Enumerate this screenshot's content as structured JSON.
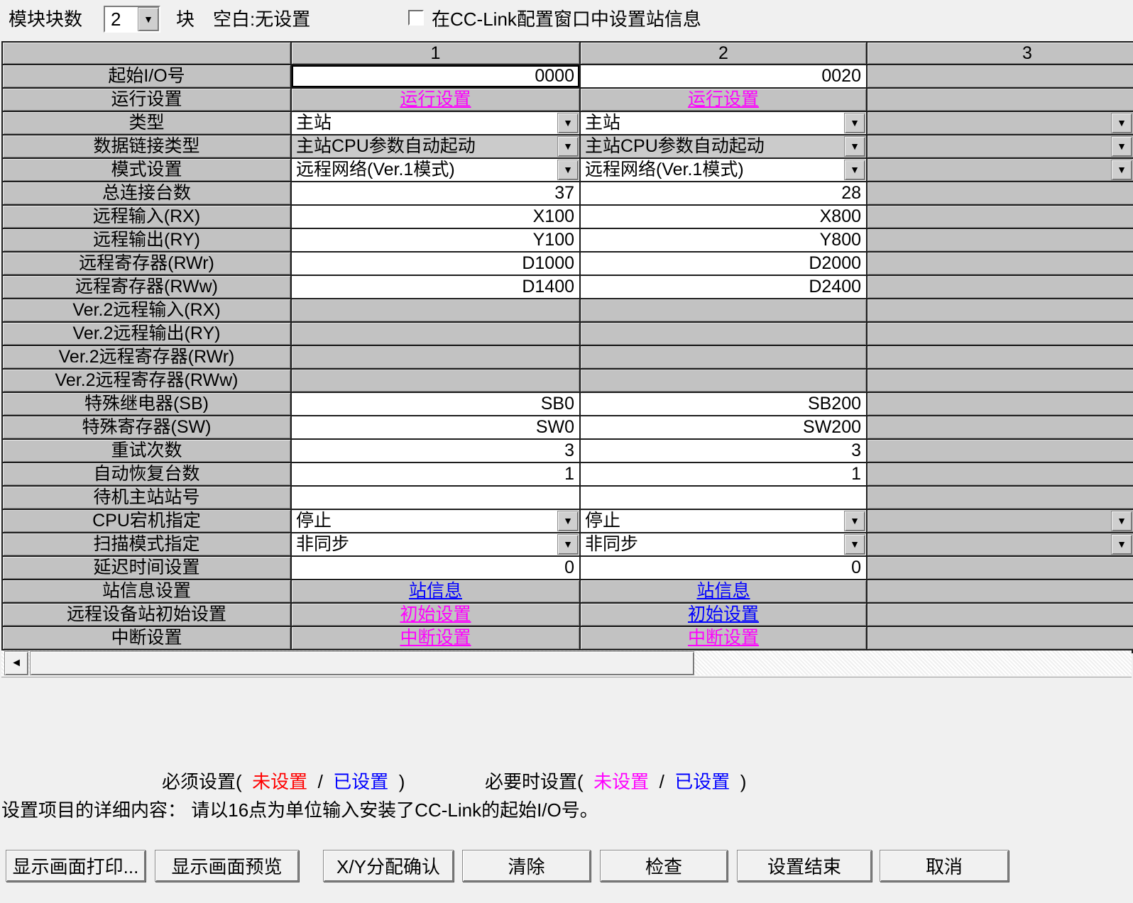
{
  "top": {
    "module_count_label": "模块块数",
    "module_count_value": "2",
    "unit_label": "块",
    "blank_note": "空白:无设置",
    "checkbox_label": "在CC-Link配置窗口中设置站信息",
    "checkbox_checked": false
  },
  "icons": {
    "dropdown_arrow": "▼",
    "scroll_left": "◄"
  },
  "colors": {
    "magenta": "#ff00ff",
    "blue": "#0000ff",
    "red": "#ff0000",
    "silver": "#c2c2c2"
  },
  "table": {
    "column_headers": [
      "1",
      "2",
      "3"
    ],
    "rows": [
      {
        "id": "start-io-no",
        "label": "起始I/O号",
        "cells": [
          {
            "type": "input",
            "value": "0000",
            "selected": true
          },
          {
            "type": "input",
            "value": "0020"
          },
          {
            "type": "gray"
          }
        ]
      },
      {
        "id": "operation-setting",
        "label": "运行设置",
        "cells": [
          {
            "type": "link",
            "value": "运行设置",
            "color": "magenta"
          },
          {
            "type": "link",
            "value": "运行设置",
            "color": "magenta"
          },
          {
            "type": "gray"
          }
        ]
      },
      {
        "id": "type",
        "label": "类型",
        "cells": [
          {
            "type": "combo",
            "value": "主站"
          },
          {
            "type": "combo",
            "value": "主站"
          },
          {
            "type": "combo-edge"
          }
        ]
      },
      {
        "id": "data-link-type",
        "label": "数据链接类型",
        "cells": [
          {
            "type": "combo",
            "value": "主站CPU参数自动起动",
            "field": "silver"
          },
          {
            "type": "combo",
            "value": "主站CPU参数自动起动",
            "field": "silver"
          },
          {
            "type": "combo-edge"
          }
        ]
      },
      {
        "id": "mode-setting",
        "label": "模式设置",
        "cells": [
          {
            "type": "combo",
            "value": "远程网络(Ver.1模式)"
          },
          {
            "type": "combo",
            "value": "远程网络(Ver.1模式)"
          },
          {
            "type": "combo-edge"
          }
        ]
      },
      {
        "id": "total-connected",
        "label": "总连接台数",
        "cells": [
          {
            "type": "input",
            "value": "37"
          },
          {
            "type": "input",
            "value": "28"
          },
          {
            "type": "gray"
          }
        ]
      },
      {
        "id": "remote-input-rx",
        "label": "远程输入(RX)",
        "cells": [
          {
            "type": "input",
            "value": "X100"
          },
          {
            "type": "input",
            "value": "X800"
          },
          {
            "type": "gray"
          }
        ]
      },
      {
        "id": "remote-output-ry",
        "label": "远程输出(RY)",
        "cells": [
          {
            "type": "input",
            "value": "Y100"
          },
          {
            "type": "input",
            "value": "Y800"
          },
          {
            "type": "gray"
          }
        ]
      },
      {
        "id": "remote-register-rwr",
        "label": "远程寄存器(RWr)",
        "cells": [
          {
            "type": "input",
            "value": "D1000"
          },
          {
            "type": "input",
            "value": "D2000"
          },
          {
            "type": "gray"
          }
        ]
      },
      {
        "id": "remote-register-rww",
        "label": "远程寄存器(RWw)",
        "cells": [
          {
            "type": "input",
            "value": "D1400"
          },
          {
            "type": "input",
            "value": "D2400"
          },
          {
            "type": "gray"
          }
        ]
      },
      {
        "id": "ver2-remote-input-rx",
        "label": "Ver.2远程输入(RX)",
        "cells": [
          {
            "type": "gray"
          },
          {
            "type": "gray"
          },
          {
            "type": "gray"
          }
        ]
      },
      {
        "id": "ver2-remote-output-ry",
        "label": "Ver.2远程输出(RY)",
        "cells": [
          {
            "type": "gray"
          },
          {
            "type": "gray"
          },
          {
            "type": "gray"
          }
        ]
      },
      {
        "id": "ver2-remote-register-rwr",
        "label": "Ver.2远程寄存器(RWr)",
        "cells": [
          {
            "type": "gray"
          },
          {
            "type": "gray"
          },
          {
            "type": "gray"
          }
        ]
      },
      {
        "id": "ver2-remote-register-rww",
        "label": "Ver.2远程寄存器(RWw)",
        "cells": [
          {
            "type": "gray"
          },
          {
            "type": "gray"
          },
          {
            "type": "gray"
          }
        ]
      },
      {
        "id": "special-relay-sb",
        "label": "特殊继电器(SB)",
        "cells": [
          {
            "type": "input",
            "value": "SB0"
          },
          {
            "type": "input",
            "value": "SB200"
          },
          {
            "type": "gray"
          }
        ]
      },
      {
        "id": "special-register-sw",
        "label": "特殊寄存器(SW)",
        "cells": [
          {
            "type": "input",
            "value": "SW0"
          },
          {
            "type": "input",
            "value": "SW200"
          },
          {
            "type": "gray"
          }
        ]
      },
      {
        "id": "retry-count",
        "label": "重试次数",
        "cells": [
          {
            "type": "input",
            "value": "3"
          },
          {
            "type": "input",
            "value": "3"
          },
          {
            "type": "gray"
          }
        ]
      },
      {
        "id": "auto-reconnect-count",
        "label": "自动恢复台数",
        "cells": [
          {
            "type": "input",
            "value": "1"
          },
          {
            "type": "input",
            "value": "1"
          },
          {
            "type": "gray"
          }
        ]
      },
      {
        "id": "standby-master-no",
        "label": "待机主站站号",
        "cells": [
          {
            "type": "input",
            "value": ""
          },
          {
            "type": "input",
            "value": ""
          },
          {
            "type": "gray"
          }
        ]
      },
      {
        "id": "cpu-down-select",
        "label": "CPU宕机指定",
        "cells": [
          {
            "type": "combo",
            "value": "停止"
          },
          {
            "type": "combo",
            "value": "停止"
          },
          {
            "type": "combo-edge"
          }
        ]
      },
      {
        "id": "scan-mode",
        "label": "扫描模式指定",
        "cells": [
          {
            "type": "combo",
            "value": "非同步"
          },
          {
            "type": "combo",
            "value": "非同步"
          },
          {
            "type": "combo-edge"
          }
        ]
      },
      {
        "id": "delay-time",
        "label": "延迟时间设置",
        "cells": [
          {
            "type": "input",
            "value": "0"
          },
          {
            "type": "input",
            "value": "0"
          },
          {
            "type": "gray"
          }
        ]
      },
      {
        "id": "station-info",
        "label": "站信息设置",
        "cells": [
          {
            "type": "link",
            "value": "站信息",
            "color": "blue"
          },
          {
            "type": "link",
            "value": "站信息",
            "color": "blue"
          },
          {
            "type": "gray"
          }
        ]
      },
      {
        "id": "remote-device-init",
        "label": "远程设备站初始设置",
        "cells": [
          {
            "type": "link",
            "value": "初始设置",
            "color": "magenta"
          },
          {
            "type": "link",
            "value": "初始设置",
            "color": "blue"
          },
          {
            "type": "gray"
          }
        ]
      },
      {
        "id": "interrupt-setting",
        "label": "中断设置",
        "cells": [
          {
            "type": "link",
            "value": "中断设置",
            "color": "magenta"
          },
          {
            "type": "link",
            "value": "中断设置",
            "color": "magenta"
          },
          {
            "type": "gray"
          }
        ]
      }
    ]
  },
  "legend": {
    "required_prefix": "必须设置(",
    "required_unset": "未设置",
    "slash": "/",
    "required_set": "已设置",
    "close_paren": ")",
    "optional_prefix": "必要时设置(",
    "optional_unset": "未设置",
    "optional_set": "已设置"
  },
  "description": {
    "title": "设置项目的详细内容：",
    "text": "请以16点为单位输入安装了CC-Link的起始I/O号。"
  },
  "buttons": {
    "labels": [
      "显示画面打印...",
      "显示画面预览",
      "X/Y分配确认",
      "清除",
      "检查",
      "设置结束",
      "取消"
    ]
  }
}
